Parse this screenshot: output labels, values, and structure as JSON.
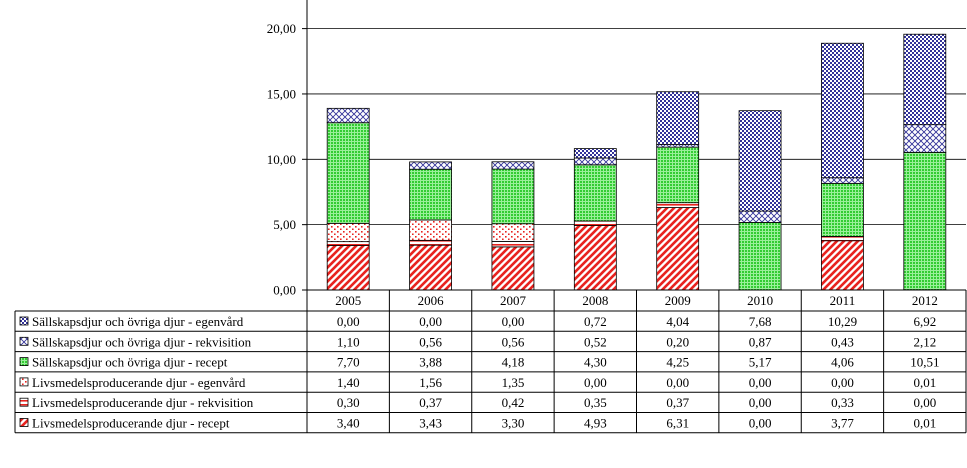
{
  "chart_data": {
    "type": "bar",
    "stacked": true,
    "categories": [
      "2005",
      "2006",
      "2007",
      "2008",
      "2009",
      "2010",
      "2011",
      "2012"
    ],
    "y_tick_labels": [
      "0,00",
      "5,00",
      "10,00",
      "15,00",
      "20,00"
    ],
    "ylim": [
      0,
      22
    ],
    "grid": true,
    "legend": "data-table-below",
    "series": [
      {
        "name": "Livsmedelsproducerande djur - recept",
        "values": [
          3.4,
          3.43,
          3.3,
          4.93,
          6.31,
          0.0,
          3.77,
          0.01
        ],
        "labels": [
          "3,40",
          "3,43",
          "3,30",
          "4,93",
          "6,31",
          "0,00",
          "3,77",
          "0,01"
        ],
        "color": "#e8231f",
        "pattern": "diag"
      },
      {
        "name": "Livsmedelsproducerande djur - rekvisition",
        "values": [
          0.3,
          0.37,
          0.42,
          0.35,
          0.37,
          0.0,
          0.33,
          0.0
        ],
        "labels": [
          "0,30",
          "0,37",
          "0,42",
          "0,35",
          "0,37",
          "0,00",
          "0,33",
          "0,00"
        ],
        "color": "#e8231f",
        "pattern": "hlines"
      },
      {
        "name": "Livsmedelsproducerande djur - egenvård",
        "values": [
          1.4,
          1.56,
          1.35,
          0.0,
          0.0,
          0.0,
          0.0,
          0.01
        ],
        "labels": [
          "1,40",
          "1,56",
          "1,35",
          "0,00",
          "0,00",
          "0,00",
          "0,00",
          "0,01"
        ],
        "color": "#e8231f",
        "pattern": "dots"
      },
      {
        "name": "Sällskapsdjur och övriga djur - recept",
        "values": [
          7.7,
          3.88,
          4.18,
          4.3,
          4.25,
          5.17,
          4.06,
          10.51
        ],
        "labels": [
          "7,70",
          "3,88",
          "4,18",
          "4,30",
          "4,25",
          "5,17",
          "4,06",
          "10,51"
        ],
        "color": "#33cc33",
        "pattern": "grid"
      },
      {
        "name": "Sällskapsdjur och övriga djur - rekvisition",
        "values": [
          1.1,
          0.56,
          0.56,
          0.52,
          0.2,
          0.87,
          0.43,
          2.12
        ],
        "labels": [
          "1,10",
          "0,56",
          "0,56",
          "0,52",
          "0,20",
          "0,87",
          "0,43",
          "2,12"
        ],
        "color": "#333399",
        "pattern": "cross"
      },
      {
        "name": "Sällskapsdjur och övriga djur - egenvård",
        "values": [
          0.0,
          0.0,
          0.0,
          0.72,
          4.04,
          7.68,
          10.29,
          6.92
        ],
        "labels": [
          "0,00",
          "0,00",
          "0,00",
          "0,72",
          "4,04",
          "7,68",
          "10,29",
          "6,92"
        ],
        "color": "#333399",
        "pattern": "bluedots"
      }
    ]
  }
}
